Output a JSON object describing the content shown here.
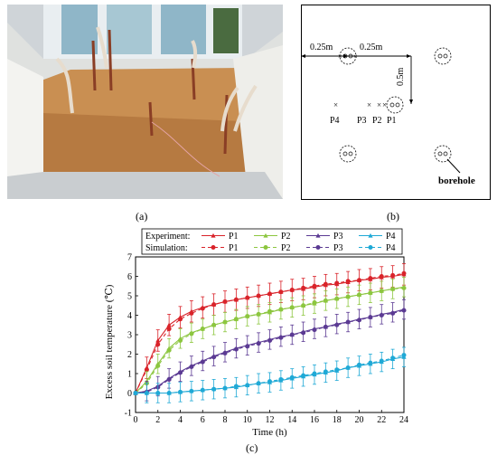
{
  "panels": {
    "a": "(a)",
    "b": "(b)",
    "c": "(c)"
  },
  "layout_diagram": {
    "dim_left": "0.25m",
    "dim_right": "0.25m",
    "dim_vertical": "0.5m",
    "point_labels": [
      "P4",
      "P3",
      "P2",
      "P1"
    ],
    "borehole_label": "borehole"
  },
  "colors": {
    "P1": "#d9232a",
    "P2": "#8cc63f",
    "P3": "#5b3a93",
    "P4": "#1fa9d6"
  },
  "chart_data": {
    "type": "line",
    "xlabel": "Time (h)",
    "ylabel": "Excess soil temperature (℃)",
    "xlim": [
      0,
      24
    ],
    "ylim": [
      -1,
      7
    ],
    "xticks": [
      0,
      2,
      4,
      6,
      8,
      10,
      12,
      14,
      16,
      18,
      20,
      22,
      24
    ],
    "yticks": [
      -1,
      0,
      1,
      2,
      3,
      4,
      5,
      6,
      7
    ],
    "legend": {
      "placement": "top",
      "experiment_label": "Experiment:",
      "simulation_label": "Simulation:"
    },
    "x": [
      0,
      1,
      2,
      3,
      4,
      5,
      6,
      7,
      8,
      9,
      10,
      11,
      12,
      13,
      14,
      15,
      16,
      17,
      18,
      19,
      20,
      21,
      22,
      23,
      24
    ],
    "series": [
      {
        "name": "P1",
        "kind": "experiment",
        "error": 0.55,
        "values": [
          0,
          1.3,
          2.7,
          3.5,
          3.9,
          4.2,
          4.4,
          4.55,
          4.7,
          4.8,
          4.9,
          5.0,
          5.1,
          5.2,
          5.3,
          5.35,
          5.45,
          5.55,
          5.6,
          5.7,
          5.8,
          5.85,
          5.95,
          6.0,
          6.1
        ]
      },
      {
        "name": "P1",
        "kind": "simulation",
        "values": [
          0,
          1.2,
          2.5,
          3.3,
          3.8,
          4.1,
          4.35,
          4.55,
          4.7,
          4.8,
          4.9,
          5.0,
          5.1,
          5.2,
          5.3,
          5.4,
          5.5,
          5.6,
          5.65,
          5.75,
          5.8,
          5.9,
          6.0,
          6.05,
          6.15
        ]
      },
      {
        "name": "P2",
        "kind": "experiment",
        "error": 0.5,
        "values": [
          0,
          0.6,
          1.5,
          2.3,
          2.8,
          3.1,
          3.3,
          3.5,
          3.65,
          3.8,
          3.95,
          4.05,
          4.15,
          4.3,
          4.4,
          4.5,
          4.6,
          4.75,
          4.85,
          4.95,
          5.05,
          5.15,
          5.25,
          5.35,
          5.45
        ]
      },
      {
        "name": "P2",
        "kind": "simulation",
        "values": [
          0,
          0.5,
          1.4,
          2.2,
          2.7,
          3.05,
          3.3,
          3.5,
          3.65,
          3.8,
          3.95,
          4.05,
          4.2,
          4.3,
          4.4,
          4.5,
          4.65,
          4.75,
          4.85,
          4.95,
          5.05,
          5.15,
          5.25,
          5.35,
          5.4
        ]
      },
      {
        "name": "P3",
        "kind": "experiment",
        "error": 0.5,
        "values": [
          0,
          0.1,
          0.35,
          0.75,
          1.1,
          1.4,
          1.65,
          1.9,
          2.1,
          2.3,
          2.45,
          2.6,
          2.75,
          2.9,
          3.0,
          3.15,
          3.3,
          3.4,
          3.55,
          3.65,
          3.8,
          3.9,
          4.05,
          4.15,
          4.3
        ]
      },
      {
        "name": "P3",
        "kind": "simulation",
        "values": [
          0,
          0.05,
          0.3,
          0.7,
          1.05,
          1.35,
          1.6,
          1.85,
          2.05,
          2.25,
          2.4,
          2.55,
          2.7,
          2.85,
          3.0,
          3.1,
          3.25,
          3.4,
          3.5,
          3.65,
          3.75,
          3.9,
          4.0,
          4.1,
          4.25
        ]
      },
      {
        "name": "P4",
        "kind": "experiment",
        "error": 0.5,
        "values": [
          0,
          0,
          0,
          0,
          0.05,
          0.1,
          0.15,
          0.2,
          0.25,
          0.3,
          0.4,
          0.5,
          0.55,
          0.65,
          0.75,
          0.85,
          0.95,
          1.05,
          1.15,
          1.3,
          1.4,
          1.5,
          1.6,
          1.75,
          1.85
        ]
      },
      {
        "name": "P4",
        "kind": "simulation",
        "values": [
          0,
          0,
          0,
          0,
          0.05,
          0.1,
          0.15,
          0.2,
          0.25,
          0.35,
          0.4,
          0.5,
          0.6,
          0.7,
          0.8,
          0.9,
          1.0,
          1.1,
          1.2,
          1.3,
          1.45,
          1.55,
          1.65,
          1.8,
          1.95
        ]
      }
    ]
  }
}
